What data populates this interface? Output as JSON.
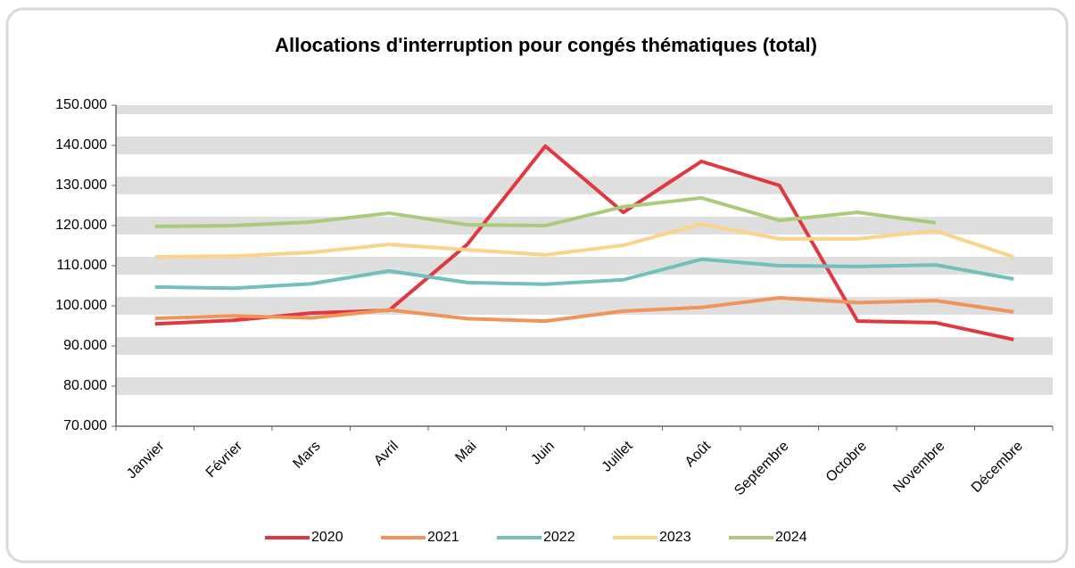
{
  "chart_data": {
    "type": "line",
    "title": "Allocations d'interruption pour congés thématiques (total)",
    "categories": [
      "Janvier",
      "Février",
      "Mars",
      "Avril",
      "Mai",
      "Juin",
      "Juillet",
      "Août",
      "Septembre",
      "Octobre",
      "Novembre",
      "Décembre"
    ],
    "series": [
      {
        "name": "2020",
        "color": "#e0383e",
        "values": [
          95500,
          96400,
          98200,
          98900,
          115300,
          139800,
          123300,
          136000,
          130000,
          96200,
          95800,
          91600
        ]
      },
      {
        "name": "2021",
        "color": "#f0945a",
        "values": [
          96900,
          97500,
          97000,
          99000,
          96800,
          96200,
          98700,
          99600,
          102000,
          100800,
          101300,
          98500
        ]
      },
      {
        "name": "2022",
        "color": "#72bfbd",
        "values": [
          104700,
          104400,
          105500,
          108700,
          105800,
          105400,
          106500,
          111600,
          110000,
          109800,
          110200,
          106700
        ]
      },
      {
        "name": "2023",
        "color": "#fcd389",
        "values": [
          112200,
          112400,
          113300,
          115300,
          114000,
          112700,
          115100,
          120400,
          116700,
          116700,
          118700,
          112200
        ]
      },
      {
        "name": "2024",
        "color": "#a9cc7a",
        "values": [
          119800,
          120000,
          120900,
          123100,
          120200,
          120000,
          124700,
          126900,
          121300,
          123300,
          120700,
          null
        ]
      }
    ],
    "ylim": [
      70000,
      150000
    ],
    "yticks": [
      {
        "value": 70000,
        "label": "70.000"
      },
      {
        "value": 80000,
        "label": "80.000"
      },
      {
        "value": 90000,
        "label": "90.000"
      },
      {
        "value": 100000,
        "label": "100.000"
      },
      {
        "value": 110000,
        "label": "110.000"
      },
      {
        "value": 120000,
        "label": "120.000"
      },
      {
        "value": 130000,
        "label": "130.000"
      },
      {
        "value": 140000,
        "label": "140.000"
      },
      {
        "value": 150000,
        "label": "150.000"
      }
    ],
    "grid": true,
    "legend": "bottom"
  }
}
